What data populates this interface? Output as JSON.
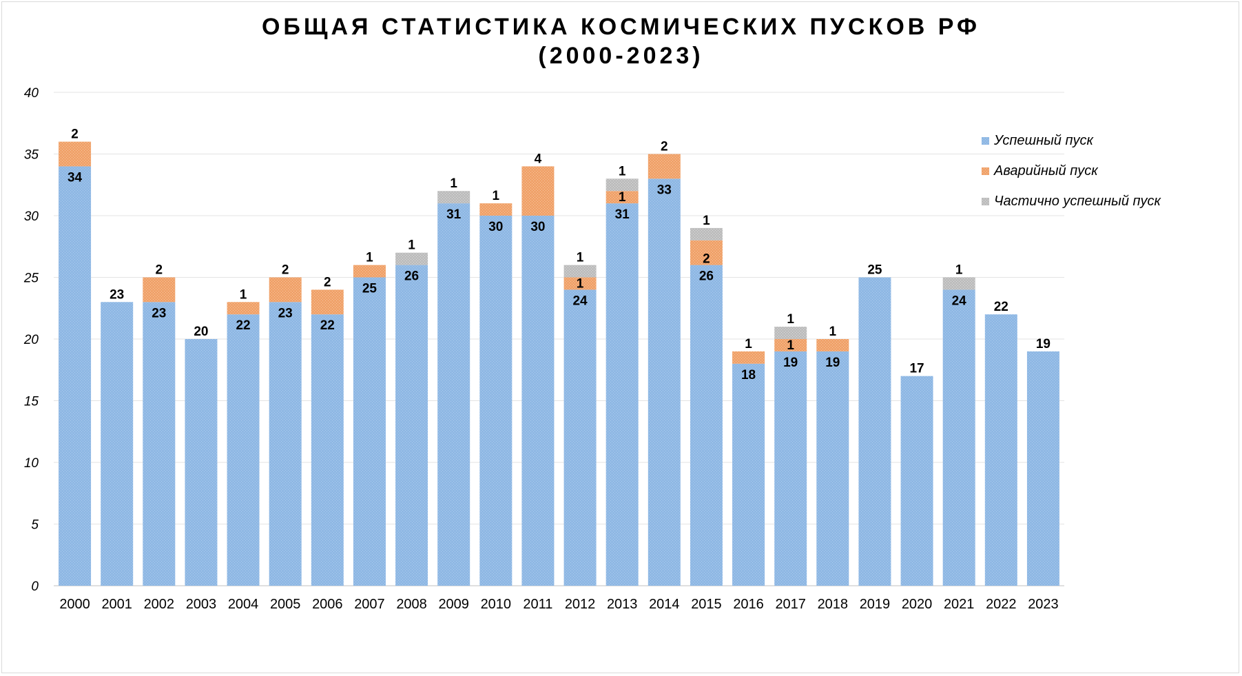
{
  "chart_data": {
    "type": "bar",
    "stacked": true,
    "title": "ОБЩАЯ СТАТИСТИКА КОСМИЧЕСКИХ ПУСКОВ РФ",
    "subtitle": "(2000-2023)",
    "categories": [
      "2000",
      "2001",
      "2002",
      "2003",
      "2004",
      "2005",
      "2006",
      "2007",
      "2008",
      "2009",
      "2010",
      "2011",
      "2012",
      "2013",
      "2014",
      "2015",
      "2016",
      "2017",
      "2018",
      "2019",
      "2020",
      "2021",
      "2022",
      "2023"
    ],
    "series": [
      {
        "name": "Успешный пуск",
        "color": "#8fb8e4",
        "values": [
          34,
          23,
          23,
          20,
          22,
          23,
          22,
          25,
          26,
          31,
          30,
          30,
          24,
          31,
          33,
          26,
          18,
          19,
          19,
          25,
          17,
          24,
          22,
          19
        ]
      },
      {
        "name": "Аварийный пуск",
        "color": "#f0a26a",
        "values": [
          2,
          0,
          2,
          0,
          1,
          2,
          2,
          1,
          0,
          0,
          1,
          4,
          1,
          1,
          2,
          2,
          1,
          1,
          1,
          0,
          0,
          0,
          0,
          0
        ]
      },
      {
        "name": "Частично успешный пуск",
        "color": "#bdbdbd",
        "values": [
          0,
          0,
          0,
          0,
          0,
          0,
          0,
          0,
          1,
          1,
          0,
          0,
          1,
          1,
          0,
          1,
          0,
          1,
          0,
          0,
          0,
          1,
          0,
          0
        ]
      }
    ],
    "ylim": [
      0,
      40
    ],
    "yticks": [
      0,
      5,
      10,
      15,
      20,
      25,
      30,
      35,
      40
    ],
    "grid": true,
    "legend": "top-right",
    "xlabel": "",
    "ylabel": ""
  }
}
